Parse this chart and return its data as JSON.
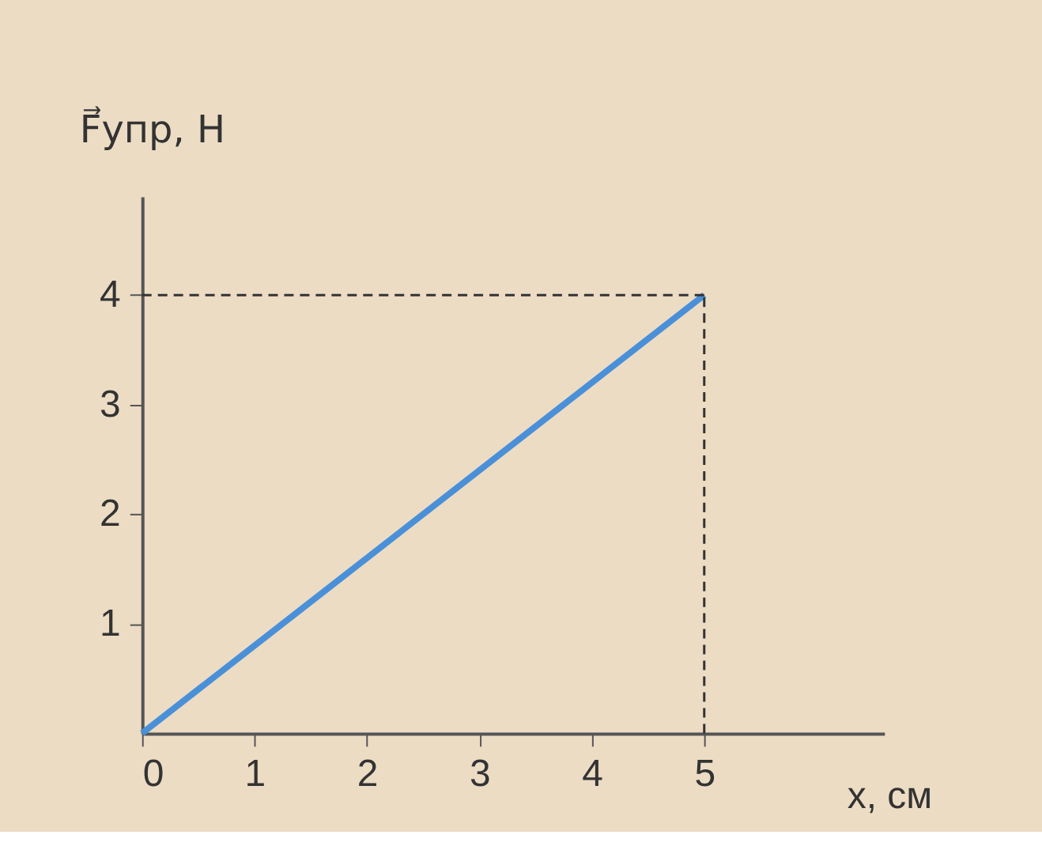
{
  "chart_data": {
    "type": "line",
    "xlabel": "x, см",
    "ylabel": "F⃗упр, Н",
    "x": [
      0,
      5
    ],
    "series": [
      {
        "color": "#4a90d9",
        "values": [
          0,
          4
        ]
      }
    ],
    "xlim": [
      0,
      6.6
    ],
    "ylim": [
      0,
      4.9
    ],
    "xticks": [
      0,
      1,
      2,
      3,
      4,
      5
    ],
    "yticks": [
      1,
      2,
      3,
      4
    ],
    "ref_lines": [
      {
        "axis": "x",
        "value": 5,
        "line_style": "dashed",
        "color": "#333333"
      },
      {
        "axis": "y",
        "value": 4,
        "line_style": "dashed",
        "color": "#333333"
      }
    ],
    "grid": false,
    "marker": "none",
    "line_style": "solid"
  }
}
